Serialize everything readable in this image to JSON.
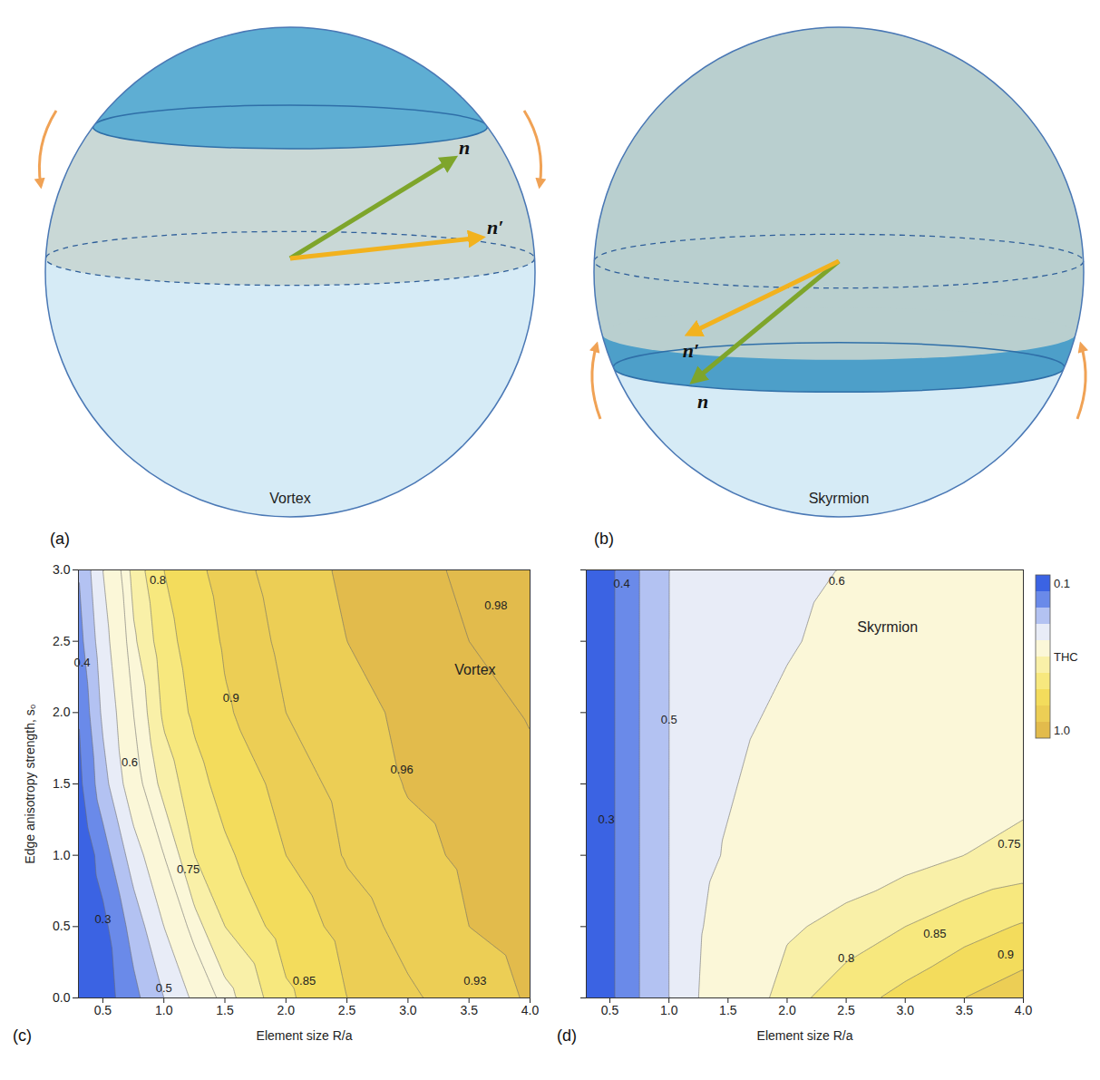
{
  "chart_data": [
    {
      "type": "contour",
      "panel": "(c)",
      "x_label": "Element size R/a",
      "y_label": "Edge anisotropy strength, s₀",
      "xlim": [
        0.3,
        4.0
      ],
      "ylim": [
        0,
        3
      ],
      "xticks": [
        0.5,
        {
          "value": 1,
          "label": "1.0"
        },
        1.5,
        {
          "value": 2,
          "label": "2.0"
        },
        2.5,
        {
          "value": 3,
          "label": "3.0"
        },
        3.5,
        {
          "value": 4,
          "label": "4.0"
        }
      ],
      "yticks": [
        {
          "value": 0,
          "label": "0.0"
        },
        0.5,
        {
          "value": 1,
          "label": "1.0"
        },
        1.5,
        {
          "value": 2,
          "label": "2.0"
        },
        2.5,
        {
          "value": 3,
          "label": "3.0"
        }
      ],
      "x": [
        0.3,
        0.5,
        0.75,
        1.0,
        1.25,
        1.5,
        2.0,
        2.5,
        3.0,
        3.5,
        4.0
      ],
      "y": [
        0,
        0.5,
        1,
        1.5,
        2,
        2.5,
        3
      ],
      "values": [
        [
          0.15,
          0.25,
          0.37,
          0.5,
          0.62,
          0.73,
          0.84,
          0.9,
          0.925,
          0.945,
          0.963
        ],
        [
          0.17,
          0.27,
          0.44,
          0.6,
          0.73,
          0.8,
          0.875,
          0.915,
          0.94,
          0.96,
          0.97
        ],
        [
          0.2,
          0.35,
          0.55,
          0.7,
          0.8,
          0.84,
          0.9,
          0.933,
          0.952,
          0.965,
          0.973
        ],
        [
          0.27,
          0.46,
          0.67,
          0.77,
          0.83,
          0.87,
          0.915,
          0.94,
          0.962,
          0.97,
          0.977
        ],
        [
          0.3,
          0.52,
          0.7,
          0.81,
          0.86,
          0.895,
          0.93,
          0.95,
          0.966,
          0.975,
          0.981
        ],
        [
          0.36,
          0.56,
          0.74,
          0.83,
          0.875,
          0.905,
          0.938,
          0.96,
          0.97,
          0.98,
          0.984
        ],
        [
          0.4,
          0.6,
          0.77,
          0.85,
          0.89,
          0.915,
          0.945,
          0.965,
          0.975,
          0.983,
          0.987
        ]
      ],
      "levels": [
        0.3,
        0.4,
        0.5,
        0.6,
        0.7,
        0.75,
        0.8,
        0.85,
        0.9,
        0.93,
        0.96,
        0.98
      ],
      "contour_labels": [
        {
          "value": 0.8,
          "x": 0.95,
          "y": 2.93
        },
        {
          "value": 0.98,
          "x": 3.72,
          "y": 2.75
        },
        {
          "value": 0.4,
          "x": 0.33,
          "y": 2.35
        },
        {
          "value": 0.9,
          "x": 1.55,
          "y": 2.1
        },
        {
          "value": 0.96,
          "x": 2.95,
          "y": 1.6
        },
        {
          "value": 0.6,
          "x": 0.72,
          "y": 1.65
        },
        {
          "value": 0.75,
          "x": 1.2,
          "y": 0.9
        },
        {
          "value": 0.3,
          "x": 0.5,
          "y": 0.55
        },
        {
          "value": 0.5,
          "x": 1.0,
          "y": 0.07
        },
        {
          "value": 0.85,
          "x": 2.15,
          "y": 0.12
        },
        {
          "value": 0.93,
          "x": 3.55,
          "y": 0.12
        }
      ],
      "annotations": [
        {
          "text": "Vortex",
          "x": 3.55,
          "y": 2.3
        }
      ]
    },
    {
      "type": "contour",
      "panel": "(d)",
      "x_label": "Element size R/a",
      "tick_labels": "x",
      "xlim": [
        0.3,
        4.0
      ],
      "ylim": [
        0,
        3
      ],
      "xticks": [
        0.5,
        {
          "value": 1,
          "label": "1.0"
        },
        1.5,
        {
          "value": 2,
          "label": "2.0"
        },
        2.5,
        {
          "value": 3,
          "label": "3.0"
        },
        3.5,
        {
          "value": 4,
          "label": "4.0"
        }
      ],
      "yticks": [
        0,
        0.5,
        1,
        1.5,
        2,
        2.5,
        3
      ],
      "x": [
        0.3,
        0.5,
        0.75,
        1.0,
        1.25,
        1.5,
        2.0,
        2.5,
        3.0,
        3.5,
        4.0
      ],
      "y": [
        0,
        0.5,
        1,
        1.5,
        2,
        2.5,
        3
      ],
      "values": [
        [
          0.2,
          0.28,
          0.4,
          0.5,
          0.6,
          0.68,
          0.78,
          0.83,
          0.865,
          0.9,
          0.93
        ],
        [
          0.2,
          0.28,
          0.4,
          0.5,
          0.59,
          0.65,
          0.74,
          0.77,
          0.8,
          0.83,
          0.855
        ],
        [
          0.2,
          0.28,
          0.4,
          0.5,
          0.57,
          0.61,
          0.67,
          0.71,
          0.73,
          0.75,
          0.765
        ],
        [
          0.2,
          0.28,
          0.4,
          0.5,
          0.56,
          0.59,
          0.65,
          0.68,
          0.7,
          0.72,
          0.735
        ],
        [
          0.2,
          0.28,
          0.4,
          0.5,
          0.55,
          0.57,
          0.62,
          0.66,
          0.68,
          0.7,
          0.71
        ],
        [
          0.2,
          0.28,
          0.4,
          0.5,
          0.54,
          0.56,
          0.59,
          0.63,
          0.66,
          0.68,
          0.69
        ],
        [
          0.2,
          0.28,
          0.4,
          0.5,
          0.53,
          0.55,
          0.575,
          0.605,
          0.63,
          0.65,
          0.67
        ]
      ],
      "levels": [
        0.3,
        0.4,
        0.5,
        0.6,
        0.75,
        0.8,
        0.85,
        0.9
      ],
      "contour_labels": [
        {
          "value": 0.4,
          "x": 0.6,
          "y": 2.9
        },
        {
          "value": 0.3,
          "x": 0.47,
          "y": 1.25
        },
        {
          "value": 0.5,
          "x": 1.0,
          "y": 1.95
        },
        {
          "value": 0.6,
          "x": 2.42,
          "y": 2.92
        },
        {
          "value": 0.75,
          "x": 3.88,
          "y": 1.08
        },
        {
          "value": 0.8,
          "x": 2.5,
          "y": 0.28
        },
        {
          "value": 0.85,
          "x": 3.25,
          "y": 0.45
        },
        {
          "value": 0.9,
          "x": 3.85,
          "y": 0.3
        }
      ],
      "annotations": [
        {
          "text": "Skyrmion",
          "x": 2.85,
          "y": 2.6
        }
      ],
      "colorbar": {
        "label": "THC",
        "range": [
          0.1,
          1.0
        ],
        "ticks": [
          0.1,
          {
            "value": 1,
            "label": "1.0"
          }
        ],
        "thresholds": [
          0.3,
          0.4,
          0.5,
          0.6,
          0.75,
          0.8,
          0.85,
          0.9,
          0.96
        ],
        "colors": [
          "#3b63e3",
          "#6a8ae9",
          "#b3c2f2",
          "#e8ecf7",
          "#fbf7d8",
          "#f9f0a8",
          "#f7e87e",
          "#f3dc5c",
          "#ecce55",
          "#e2bb4c"
        ]
      }
    }
  ],
  "diagrams": [
    {
      "panel": "(a)",
      "label": "Vortex",
      "vectors": [
        "n",
        "n′"
      ]
    },
    {
      "panel": "(b)",
      "label": "Skyrmion",
      "vectors": [
        "n",
        "n′"
      ]
    }
  ]
}
